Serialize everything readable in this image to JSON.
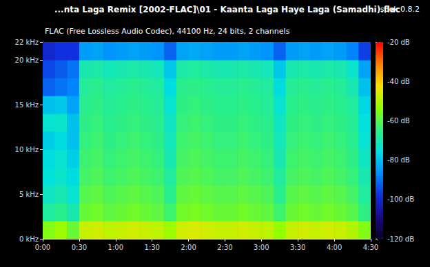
{
  "chart_data": {
    "type": "heatmap",
    "title": "...nta Laga Remix [2002-FLAC]\\01 - Kaanta Laga Haye Laga (Samadhi).flac",
    "subtitle": "FLAC (Free Lossless Audio Codec), 44100 Hz, 24 bits, 2 channels",
    "app_label": "spek 0.8.2",
    "grid": false,
    "xlim": [
      0,
      270
    ],
    "xticks": [
      {
        "value": 0,
        "label": "0:00"
      },
      {
        "value": 30,
        "label": "0:30"
      },
      {
        "value": 60,
        "label": "1:00"
      },
      {
        "value": 90,
        "label": "1:30"
      },
      {
        "value": 120,
        "label": "2:00"
      },
      {
        "value": 150,
        "label": "2:30"
      },
      {
        "value": 180,
        "label": "3:00"
      },
      {
        "value": 210,
        "label": "3:30"
      },
      {
        "value": 240,
        "label": "4:00"
      },
      {
        "value": 270,
        "label": "4:30"
      }
    ],
    "ylim": [
      0,
      22
    ],
    "yticks": [
      {
        "value": 0,
        "label": "0 kHz"
      },
      {
        "value": 5,
        "label": "5 kHz"
      },
      {
        "value": 10,
        "label": "10 kHz"
      },
      {
        "value": 15,
        "label": "15 kHz"
      },
      {
        "value": 20,
        "label": "20 kHz"
      },
      {
        "value": 22,
        "label": "22 kHz"
      }
    ],
    "x_bins": [
      0,
      10,
      20,
      30,
      40,
      50,
      60,
      70,
      80,
      90,
      100,
      110,
      120,
      130,
      140,
      150,
      160,
      170,
      180,
      190,
      200,
      210,
      220,
      230,
      240,
      250,
      260,
      270
    ],
    "y_bins": [
      0,
      2,
      4,
      6,
      8,
      10,
      12,
      14,
      16,
      18,
      20,
      22
    ],
    "values": [
      [
        -55,
        -52,
        -58,
        -48,
        -47,
        -49,
        -48,
        -47,
        -48,
        -49,
        -52,
        -47,
        -46,
        -47,
        -48,
        -48,
        -47,
        -48,
        -49,
        -53,
        -48,
        -47,
        -48,
        -47,
        -48,
        -50,
        -55
      ],
      [
        -68,
        -66,
        -70,
        -58,
        -57,
        -59,
        -58,
        -57,
        -58,
        -59,
        -63,
        -57,
        -56,
        -57,
        -58,
        -58,
        -57,
        -58,
        -59,
        -63,
        -58,
        -57,
        -58,
        -57,
        -58,
        -60,
        -65
      ],
      [
        -72,
        -70,
        -74,
        -60,
        -59,
        -61,
        -60,
        -59,
        -60,
        -61,
        -66,
        -59,
        -58,
        -59,
        -60,
        -60,
        -59,
        -60,
        -61,
        -66,
        -60,
        -59,
        -60,
        -59,
        -60,
        -62,
        -68
      ],
      [
        -75,
        -73,
        -76,
        -62,
        -61,
        -63,
        -62,
        -61,
        -62,
        -63,
        -68,
        -61,
        -60,
        -61,
        -62,
        -62,
        -61,
        -62,
        -63,
        -68,
        -62,
        -61,
        -62,
        -61,
        -62,
        -64,
        -70
      ],
      [
        -76,
        -74,
        -78,
        -63,
        -62,
        -64,
        -63,
        -62,
        -63,
        -64,
        -70,
        -62,
        -61,
        -62,
        -63,
        -63,
        -62,
        -63,
        -64,
        -70,
        -63,
        -62,
        -63,
        -62,
        -63,
        -65,
        -72
      ],
      [
        -78,
        -76,
        -80,
        -64,
        -63,
        -65,
        -64,
        -63,
        -64,
        -65,
        -71,
        -63,
        -62,
        -63,
        -64,
        -64,
        -63,
        -64,
        -65,
        -71,
        -64,
        -63,
        -64,
        -63,
        -64,
        -66,
        -74
      ],
      [
        -74,
        -73,
        -80,
        -65,
        -64,
        -66,
        -65,
        -64,
        -65,
        -66,
        -72,
        -64,
        -63,
        -64,
        -65,
        -65,
        -64,
        -65,
        -66,
        -72,
        -65,
        -64,
        -65,
        -64,
        -65,
        -67,
        -75
      ],
      [
        -80,
        -79,
        -84,
        -66,
        -65,
        -67,
        -66,
        -65,
        -66,
        -67,
        -74,
        -65,
        -64,
        -65,
        -66,
        -66,
        -65,
        -66,
        -67,
        -74,
        -66,
        -65,
        -66,
        -65,
        -66,
        -68,
        -77
      ],
      [
        -92,
        -90,
        -88,
        -67,
        -66,
        -68,
        -67,
        -66,
        -67,
        -68,
        -76,
        -66,
        -65,
        -66,
        -67,
        -67,
        -66,
        -67,
        -68,
        -76,
        -67,
        -66,
        -67,
        -66,
        -67,
        -70,
        -80
      ],
      [
        -95,
        -93,
        -90,
        -70,
        -69,
        -71,
        -70,
        -69,
        -70,
        -71,
        -79,
        -69,
        -68,
        -69,
        -70,
        -70,
        -69,
        -70,
        -71,
        -79,
        -70,
        -69,
        -70,
        -69,
        -70,
        -73,
        -84
      ],
      [
        -100,
        -98,
        -98,
        -85,
        -84,
        -86,
        -85,
        -84,
        -85,
        -86,
        -92,
        -84,
        -83,
        -84,
        -85,
        -85,
        -84,
        -85,
        -86,
        -92,
        -85,
        -84,
        -85,
        -84,
        -85,
        -88,
        -96
      ]
    ],
    "color_range": [
      -120,
      -20
    ],
    "color_ticks": [
      {
        "value": -120,
        "label": "-120 dB"
      },
      {
        "value": -100,
        "label": "-100 dB"
      },
      {
        "value": -80,
        "label": "-80 dB"
      },
      {
        "value": -60,
        "label": "-60 dB"
      },
      {
        "value": -40,
        "label": "-40 dB"
      },
      {
        "value": -20,
        "label": "-20 dB"
      }
    ]
  }
}
